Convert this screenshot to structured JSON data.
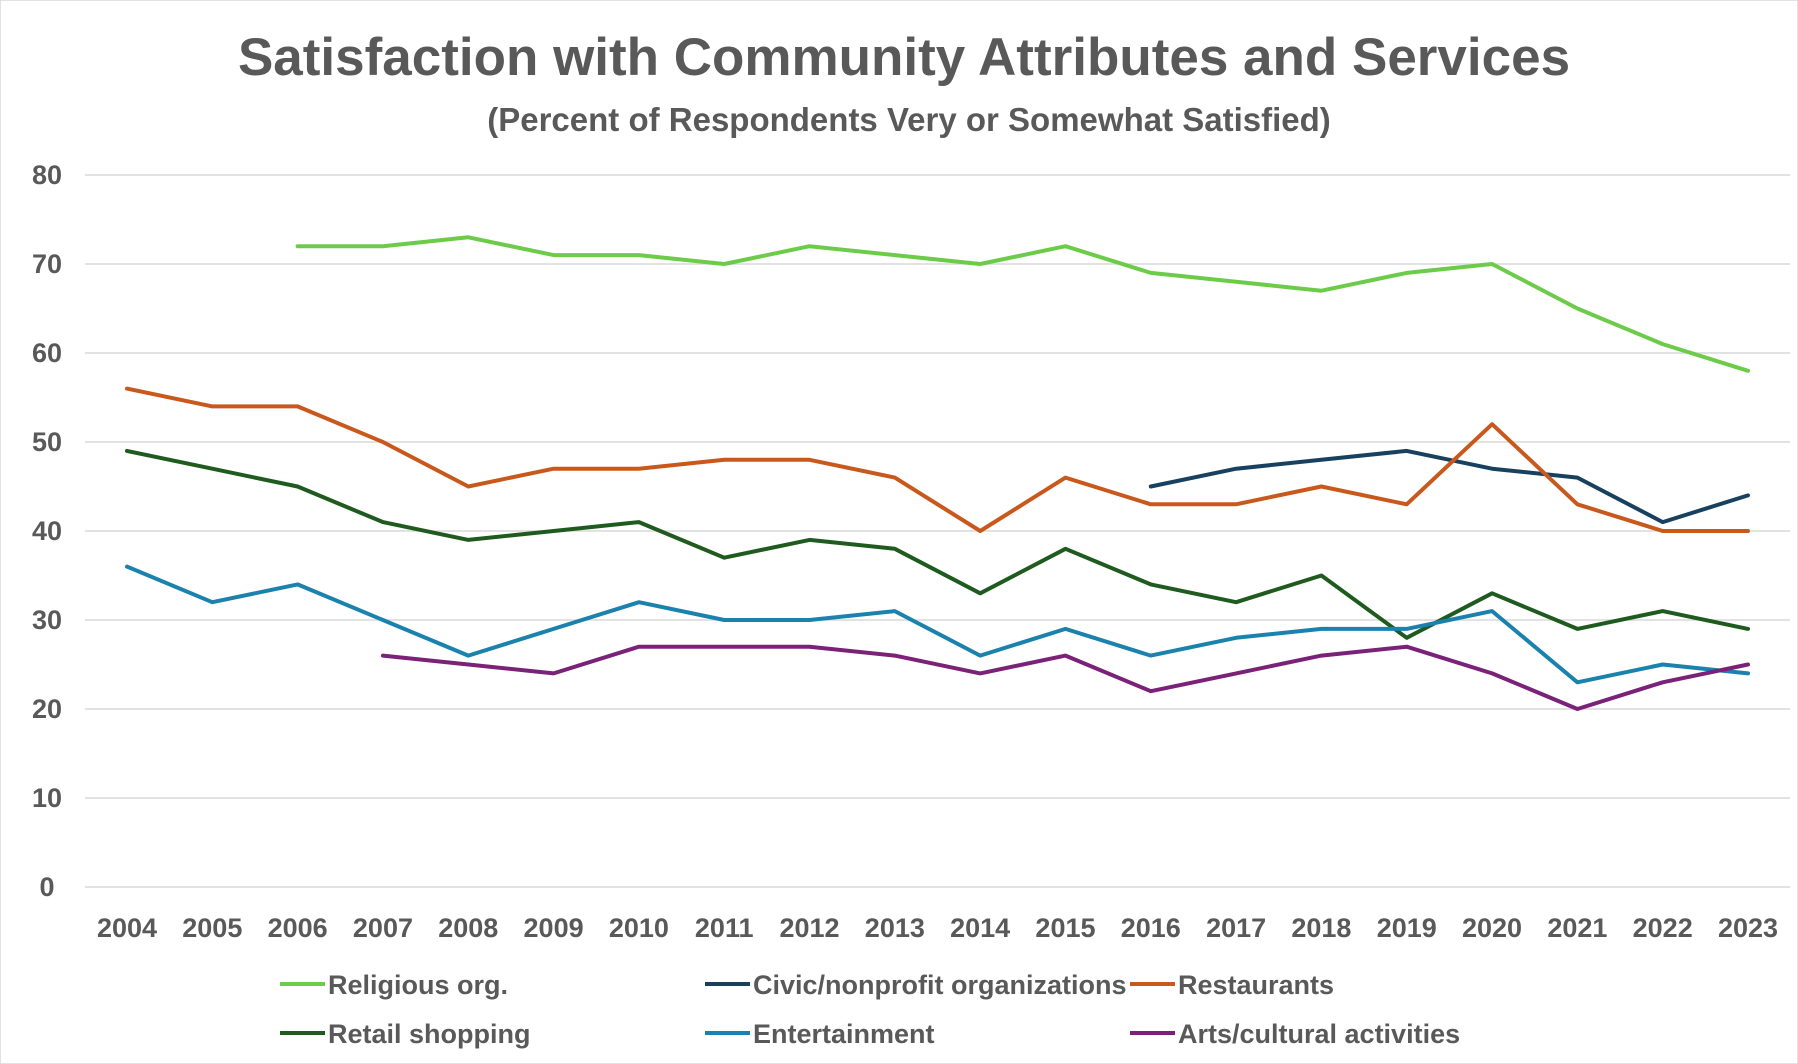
{
  "chart_data": {
    "type": "line",
    "title": "Satisfaction with Community Attributes and Services",
    "subtitle": "(Percent of Respondents Very or Somewhat Satisfied)",
    "xlabel": "",
    "ylabel": "",
    "ylim": [
      0,
      80
    ],
    "yticks": [
      "0",
      "10",
      "20",
      "30",
      "40",
      "50",
      "60",
      "70",
      "80"
    ],
    "grid": true,
    "legend_position": "bottom",
    "categories": [
      "2004",
      "2005",
      "2006",
      "2007",
      "2008",
      "2009",
      "2010",
      "2011",
      "2012",
      "2013",
      "2014",
      "2015",
      "2016",
      "2017",
      "2018",
      "2019",
      "2020",
      "2021",
      "2022",
      "2023"
    ],
    "series": [
      {
        "name": "Religious org.",
        "color": "#6ccc4a",
        "values": [
          null,
          null,
          72,
          72,
          73,
          71,
          71,
          70,
          72,
          71,
          70,
          72,
          69,
          68,
          67,
          69,
          70,
          65,
          61,
          58
        ]
      },
      {
        "name": "Civic/nonprofit  organizations",
        "color": "#17415f",
        "values": [
          null,
          null,
          null,
          null,
          null,
          null,
          null,
          null,
          null,
          null,
          null,
          null,
          45,
          47,
          48,
          49,
          47,
          46,
          41,
          44
        ]
      },
      {
        "name": "Restaurants",
        "color": "#c9581d",
        "values": [
          56,
          54,
          54,
          50,
          45,
          47,
          47,
          48,
          48,
          46,
          40,
          46,
          43,
          43,
          45,
          43,
          52,
          43,
          40,
          40
        ]
      },
      {
        "name": "Retail shopping",
        "color": "#1f5a1e",
        "values": [
          49,
          47,
          45,
          41,
          39,
          40,
          41,
          37,
          39,
          38,
          33,
          38,
          34,
          32,
          35,
          28,
          33,
          29,
          31,
          29
        ]
      },
      {
        "name": "Entertainment",
        "color": "#1a82ad",
        "values": [
          36,
          32,
          34,
          30,
          26,
          29,
          32,
          30,
          30,
          31,
          26,
          29,
          26,
          28,
          29,
          29,
          31,
          23,
          25,
          24
        ]
      },
      {
        "name": "Arts/cultural activities",
        "color": "#7a2178",
        "values": [
          null,
          null,
          null,
          26,
          25,
          24,
          27,
          27,
          27,
          26,
          24,
          26,
          22,
          24,
          26,
          27,
          24,
          20,
          23,
          25
        ]
      }
    ]
  }
}
